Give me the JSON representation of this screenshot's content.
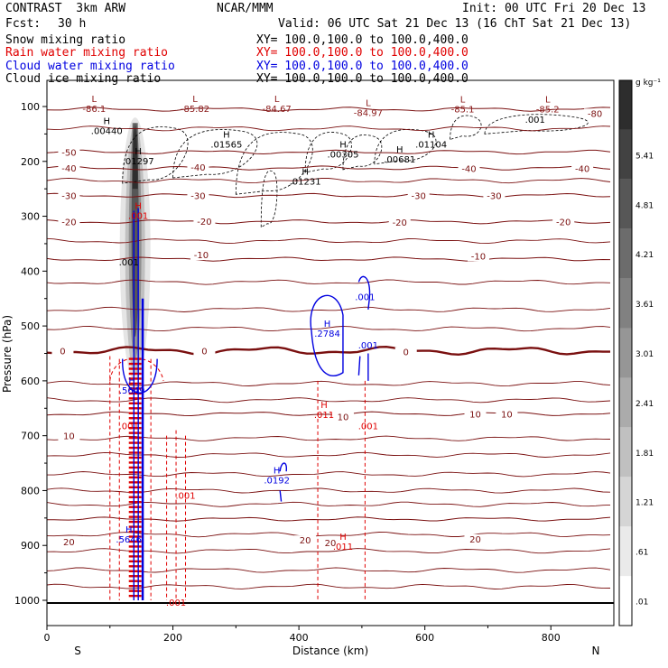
{
  "header": {
    "model": "CONTRAST  3km ARW",
    "center": "NCAR/MMM",
    "init": "Init: 00 UTC Fri 20 Dec 13",
    "fcst_label": "Fcst:",
    "fcst_value": "30 h",
    "valid": "Valid: 06 UTC Sat 21 Dec 13 (16 ChT Sat 21 Dec 13)"
  },
  "fields": [
    {
      "name": "Snow mixing ratio",
      "xy": "XY= 100.0,100.0 to 100.0,400.0",
      "color": "#000000"
    },
    {
      "name": "Rain water mixing ratio",
      "xy": "XY= 100.0,100.0 to 100.0,400.0",
      "color": "#e00000"
    },
    {
      "name": "Cloud water mixing ratio",
      "xy": "XY= 100.0,100.0 to 100.0,400.0",
      "color": "#0000e0"
    },
    {
      "name": "Cloud ice mixing ratio",
      "xy": "XY= 100.0,100.0 to 100.0,400.0",
      "color": "#000000"
    }
  ],
  "chart_data": {
    "type": "cross-section",
    "xlabel": "Distance (km)",
    "ylabel": "Pressure (hPa)",
    "xlim": [
      0,
      900
    ],
    "ylim": [
      1050,
      50
    ],
    "x_ticks": [
      0,
      200,
      400,
      600,
      800
    ],
    "y_ticks": [
      100,
      200,
      300,
      400,
      500,
      600,
      700,
      800,
      900,
      1000
    ],
    "endpoint_labels": {
      "left": "S",
      "right": "N"
    },
    "colorbar": {
      "units": "g kg⁻¹",
      "levels": [
        ".01",
        ".61",
        "1.21",
        "1.81",
        "2.41",
        "3.01",
        "3.61",
        "4.21",
        "4.81",
        "5.41"
      ]
    },
    "temperature_contours": [
      {
        "value": -80,
        "p": 105
      },
      {
        "value": -50,
        "p": 183
      },
      {
        "value": -40,
        "p": 212
      },
      {
        "value": -30,
        "p": 262
      },
      {
        "value": -20,
        "p": 310
      },
      {
        "value": -10,
        "p": 378
      },
      {
        "value": 0,
        "p": 545
      },
      {
        "value": 10,
        "p": 660
      },
      {
        "value": 20,
        "p": 852
      }
    ],
    "temperature_labels": [
      {
        "text": "-80",
        "x": 870,
        "p": 112
      },
      {
        "text": "-50",
        "x": 35,
        "p": 183
      },
      {
        "text": "-40",
        "x": 35,
        "p": 212
      },
      {
        "text": "-40",
        "x": 240,
        "p": 210
      },
      {
        "text": "-40",
        "x": 670,
        "p": 213
      },
      {
        "text": "-40",
        "x": 850,
        "p": 213
      },
      {
        "text": "-30",
        "x": 35,
        "p": 262
      },
      {
        "text": "-30",
        "x": 240,
        "p": 262
      },
      {
        "text": "-30",
        "x": 590,
        "p": 262
      },
      {
        "text": "-30",
        "x": 710,
        "p": 262
      },
      {
        "text": "-20",
        "x": 35,
        "p": 310
      },
      {
        "text": "-20",
        "x": 250,
        "p": 309
      },
      {
        "text": "-20",
        "x": 560,
        "p": 311
      },
      {
        "text": "-20",
        "x": 820,
        "p": 310
      },
      {
        "text": "-10",
        "x": 245,
        "p": 370
      },
      {
        "text": "-10",
        "x": 685,
        "p": 372
      },
      {
        "text": "0",
        "x": 25,
        "p": 545
      },
      {
        "text": "0",
        "x": 250,
        "p": 545
      },
      {
        "text": "0",
        "x": 570,
        "p": 547
      },
      {
        "text": "10",
        "x": 35,
        "p": 700
      },
      {
        "text": "10",
        "x": 470,
        "p": 665
      },
      {
        "text": "10",
        "x": 680,
        "p": 660
      },
      {
        "text": "10",
        "x": 730,
        "p": 660
      },
      {
        "text": "20",
        "x": 35,
        "p": 893
      },
      {
        "text": "20",
        "x": 410,
        "p": 890
      },
      {
        "text": "20",
        "x": 450,
        "p": 895
      },
      {
        "text": "20",
        "x": 680,
        "p": 888
      }
    ],
    "max_labels": [
      {
        "text": "-86.1",
        "x": 75,
        "p": 105,
        "color": "#8b1a1a",
        "mark": "L"
      },
      {
        "text": "-85.82",
        "x": 235,
        "p": 105,
        "color": "#8b1a1a",
        "mark": "L"
      },
      {
        "text": "-84.67",
        "x": 365,
        "p": 105,
        "color": "#8b1a1a",
        "mark": "L"
      },
      {
        "text": "-84.97",
        "x": 510,
        "p": 112,
        "color": "#8b1a1a",
        "mark": "L"
      },
      {
        "text": "-85.1",
        "x": 660,
        "p": 106,
        "color": "#8b1a1a",
        "mark": "L"
      },
      {
        "text": "-85.2",
        "x": 795,
        "p": 106,
        "color": "#8b1a1a",
        "mark": "L"
      },
      {
        "text": ".00440",
        "x": 95,
        "p": 145,
        "color": "#000000",
        "mark": "H"
      },
      {
        "text": ".01565",
        "x": 285,
        "p": 170,
        "color": "#000000",
        "mark": "H"
      },
      {
        "text": ".00305",
        "x": 470,
        "p": 188,
        "color": "#000000",
        "mark": "H"
      },
      {
        "text": ".01104",
        "x": 610,
        "p": 170,
        "color": "#000000",
        "mark": "H"
      },
      {
        "text": ".00681",
        "x": 560,
        "p": 197,
        "color": "#000000",
        "mark": "H"
      },
      {
        "text": ".01297",
        "x": 145,
        "p": 200,
        "color": "#000000",
        "mark": "H"
      },
      {
        "text": ".01231",
        "x": 410,
        "p": 237,
        "color": "#000000",
        "mark": "H"
      },
      {
        "text": ".001",
        "x": 775,
        "p": 125,
        "color": "#000000",
        "mark": ""
      },
      {
        "text": ".001",
        "x": 145,
        "p": 300,
        "color": "#e00000",
        "mark": "H"
      },
      {
        "text": ".001",
        "x": 130,
        "p": 385,
        "color": "#000000",
        "mark": ""
      },
      {
        "text": ".001",
        "x": 505,
        "p": 448,
        "color": "#0000e0",
        "mark": ""
      },
      {
        "text": ".2784",
        "x": 445,
        "p": 515,
        "color": "#0000e0",
        "mark": "H"
      },
      {
        "text": ".001",
        "x": 510,
        "p": 536,
        "color": "#0000e0",
        "mark": ""
      },
      {
        "text": ".5649",
        "x": 135,
        "p": 618,
        "color": "#0000e0",
        "mark": "H"
      },
      {
        "text": ".011",
        "x": 440,
        "p": 663,
        "color": "#e00000",
        "mark": "H"
      },
      {
        "text": ".001",
        "x": 510,
        "p": 683,
        "color": "#e00000",
        "mark": ""
      },
      {
        "text": ".001",
        "x": 130,
        "p": 683,
        "color": "#e00000",
        "mark": ""
      },
      {
        "text": ".0192",
        "x": 365,
        "p": 782,
        "color": "#0000e0",
        "mark": "H"
      },
      {
        "text": ".001",
        "x": 220,
        "p": 810,
        "color": "#e00000",
        "mark": ""
      },
      {
        "text": ".5646",
        "x": 130,
        "p": 890,
        "color": "#0000e0",
        "mark": "H"
      },
      {
        "text": ".011",
        "x": 470,
        "p": 903,
        "color": "#e00000",
        "mark": "H"
      },
      {
        "text": ".001",
        "x": 205,
        "p": 1005,
        "color": "#e00000",
        "mark": ""
      }
    ]
  }
}
